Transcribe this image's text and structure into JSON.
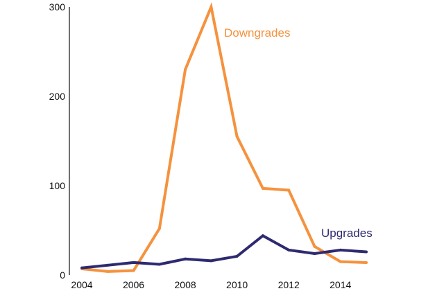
{
  "chart_data": {
    "type": "line",
    "title": "",
    "xlabel": "",
    "ylabel": "",
    "x": [
      2004,
      2005,
      2006,
      2007,
      2008,
      2009,
      2010,
      2011,
      2012,
      2013,
      2014,
      2015
    ],
    "xlim": [
      2003.9,
      2015.6
    ],
    "ylim": [
      0,
      300
    ],
    "x_ticks": [
      "2004",
      "2006",
      "2008",
      "2010",
      "2012",
      "2014"
    ],
    "y_ticks": [
      "0",
      "100",
      "200",
      "300"
    ],
    "grid": false,
    "series": [
      {
        "name": "Downgrades",
        "color": "#F5923E",
        "values": [
          7,
          4,
          5,
          52,
          230,
          300,
          155,
          97,
          95,
          32,
          15,
          14
        ]
      },
      {
        "name": "Upgrades",
        "color": "#2E2A70",
        "values": [
          8,
          11,
          14,
          12,
          18,
          16,
          21,
          44,
          28,
          24,
          28,
          26
        ]
      }
    ]
  }
}
